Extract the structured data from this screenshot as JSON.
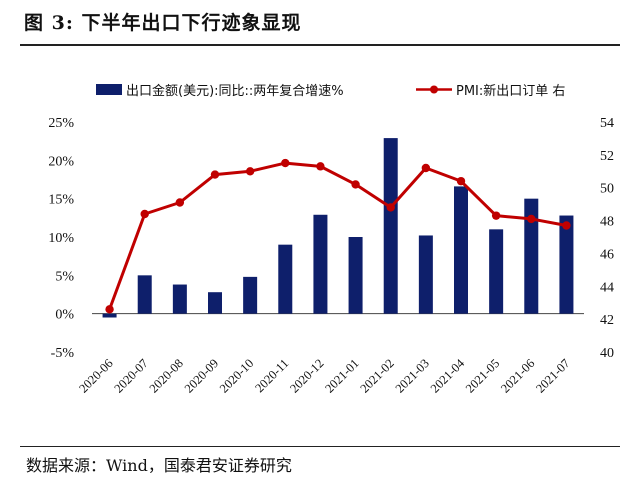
{
  "header": {
    "title": "图 3:  下半年出口下行迹象显现"
  },
  "footer": {
    "source": "数据来源：Wind，国泰君安证券研究"
  },
  "colors": {
    "bar": "#0e1f6b",
    "line": "#c00000"
  },
  "chart_data": {
    "type": "bar+line",
    "categories": [
      "2020-06",
      "2020-07",
      "2020-08",
      "2020-09",
      "2020-10",
      "2020-11",
      "2020-12",
      "2021-01",
      "2021-02",
      "2021-03",
      "2021-04",
      "2021-05",
      "2021-06",
      "2021-07"
    ],
    "series": [
      {
        "name": "出口金额(美元):同比::两年复合增速%",
        "type": "bar",
        "axis": "left",
        "values": [
          -0.5,
          5.0,
          3.8,
          2.8,
          4.8,
          9.0,
          12.9,
          10.0,
          22.9,
          10.2,
          16.6,
          11.0,
          15.0,
          12.8
        ]
      },
      {
        "name": "PMI:新出口订单 右",
        "type": "line",
        "axis": "right",
        "values": [
          42.6,
          48.4,
          49.1,
          50.8,
          51.0,
          51.5,
          51.3,
          50.2,
          48.8,
          51.2,
          50.4,
          48.3,
          48.1,
          47.7
        ]
      }
    ],
    "left_axis": {
      "min": -5,
      "max": 25,
      "ticks": [
        "-5%",
        "0%",
        "5%",
        "10%",
        "15%",
        "20%",
        "25%"
      ]
    },
    "right_axis": {
      "min": 40,
      "max": 54,
      "ticks": [
        "40",
        "42",
        "44",
        "46",
        "48",
        "50",
        "52",
        "54"
      ]
    },
    "legend_position": "top",
    "grid": false
  }
}
